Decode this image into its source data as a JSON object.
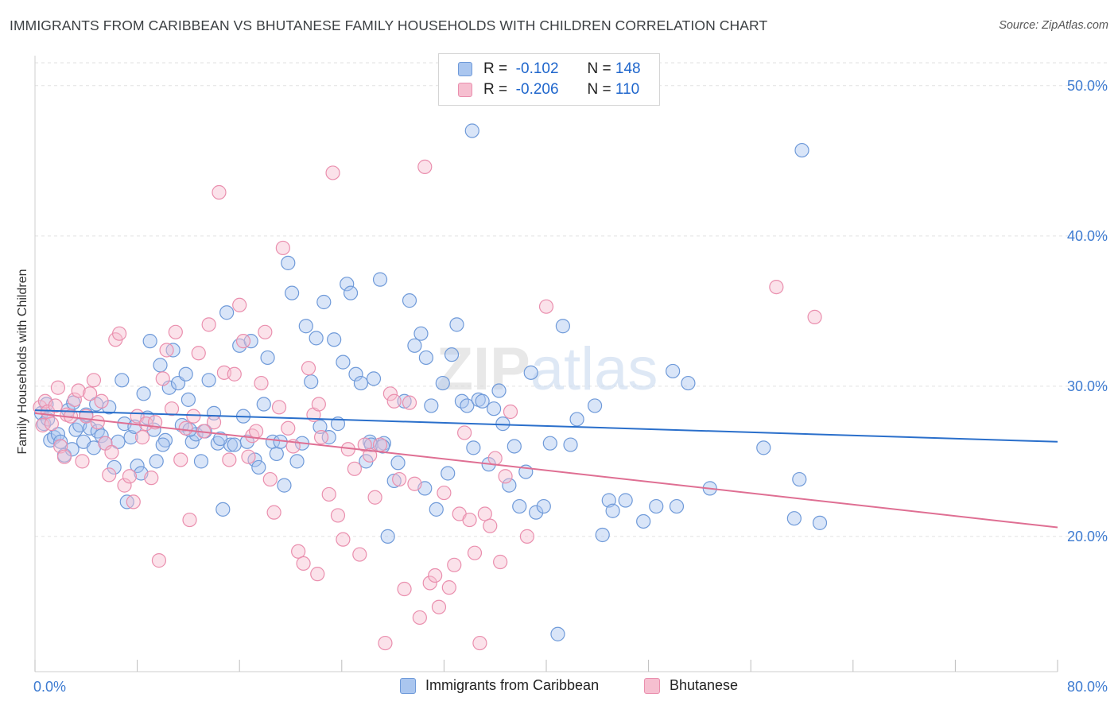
{
  "title": "IMMIGRANTS FROM CARIBBEAN VS BHUTANESE FAMILY HOUSEHOLDS WITH CHILDREN CORRELATION CHART",
  "source": "Source: ZipAtlas.com",
  "watermark": "ZIPatlas",
  "legend": {
    "r_label": "R =",
    "n_label": "N =",
    "rows": [
      {
        "r": "-0.102",
        "n": "148",
        "color": "#5b8fd6"
      },
      {
        "r": "-0.206",
        "n": "110",
        "color": "#e77fa2"
      }
    ]
  },
  "colors": {
    "blue_fill": "#aac6ef",
    "blue_stroke": "#6f9ad9",
    "blue_line": "#2a6fcb",
    "pink_fill": "#f6bfd0",
    "pink_stroke": "#ea8fae",
    "pink_line": "#df6f93",
    "tick_text": "#3d7bd1",
    "grid": "#e2e2e2"
  },
  "chart_data": {
    "type": "scatter",
    "title": "IMMIGRANTS FROM CARIBBEAN VS BHUTANESE FAMILY HOUSEHOLDS WITH CHILDREN CORRELATION CHART",
    "xlabel": "",
    "ylabel": "Family Households with Children",
    "xlim": [
      0,
      80
    ],
    "ylim": [
      11,
      52
    ],
    "x_tick_labels": [
      "0.0%",
      "80.0%"
    ],
    "y_ticks": [
      20,
      30,
      40,
      50
    ],
    "y_tick_labels": [
      "20.0%",
      "30.0%",
      "40.0%",
      "50.0%"
    ],
    "grid": true,
    "legend_position": "bottom",
    "series": [
      {
        "name": "Immigrants from Caribbean",
        "color": "#5b8fd6",
        "r": -0.102,
        "n": 148,
        "trend": {
          "x0": 0,
          "y0": 28.4,
          "x1": 80,
          "y1": 26.3
        },
        "points": [
          [
            0.5,
            28.2
          ],
          [
            0.7,
            27.5
          ],
          [
            0.9,
            28.8
          ],
          [
            1.0,
            27.8
          ],
          [
            1.2,
            26.4
          ],
          [
            1.5,
            26.6
          ],
          [
            1.8,
            26.8
          ],
          [
            2.0,
            26.3
          ],
          [
            2.3,
            25.4
          ],
          [
            2.6,
            28.4
          ],
          [
            2.9,
            25.8
          ],
          [
            3.2,
            27.1
          ],
          [
            3.5,
            27.4
          ],
          [
            3.8,
            26.3
          ],
          [
            4.0,
            28.1
          ],
          [
            4.3,
            27.2
          ],
          [
            4.6,
            25.9
          ],
          [
            4.9,
            27.0
          ],
          [
            5.2,
            26.7
          ],
          [
            5.5,
            26.2
          ],
          [
            5.8,
            28.6
          ],
          [
            6.2,
            24.6
          ],
          [
            6.5,
            26.3
          ],
          [
            7.0,
            27.5
          ],
          [
            7.2,
            22.3
          ],
          [
            7.5,
            26.6
          ],
          [
            7.8,
            27.3
          ],
          [
            8.0,
            24.7
          ],
          [
            8.3,
            24.2
          ],
          [
            8.5,
            29.5
          ],
          [
            8.8,
            27.9
          ],
          [
            9.0,
            33.0
          ],
          [
            9.3,
            27.1
          ],
          [
            9.5,
            25.0
          ],
          [
            9.8,
            31.4
          ],
          [
            10.2,
            26.4
          ],
          [
            10.5,
            29.9
          ],
          [
            10.8,
            32.4
          ],
          [
            11.2,
            30.2
          ],
          [
            11.5,
            27.4
          ],
          [
            11.8,
            30.8
          ],
          [
            12.0,
            29.1
          ],
          [
            12.3,
            26.3
          ],
          [
            12.6,
            26.8
          ],
          [
            13.0,
            25.0
          ],
          [
            13.3,
            27.0
          ],
          [
            13.6,
            30.4
          ],
          [
            14.0,
            28.2
          ],
          [
            14.3,
            26.2
          ],
          [
            14.7,
            21.8
          ],
          [
            15.0,
            34.9
          ],
          [
            15.3,
            26.1
          ],
          [
            15.6,
            26.1
          ],
          [
            16.0,
            32.7
          ],
          [
            16.3,
            28.0
          ],
          [
            16.6,
            26.3
          ],
          [
            16.9,
            33.0
          ],
          [
            17.2,
            25.1
          ],
          [
            17.5,
            24.6
          ],
          [
            17.9,
            28.8
          ],
          [
            18.2,
            31.9
          ],
          [
            18.6,
            26.3
          ],
          [
            18.9,
            25.5
          ],
          [
            19.2,
            26.3
          ],
          [
            19.5,
            23.4
          ],
          [
            19.8,
            38.2
          ],
          [
            20.1,
            36.2
          ],
          [
            20.5,
            25.0
          ],
          [
            20.9,
            26.2
          ],
          [
            21.2,
            34.0
          ],
          [
            21.6,
            30.3
          ],
          [
            22.0,
            33.2
          ],
          [
            22.3,
            27.3
          ],
          [
            22.6,
            35.6
          ],
          [
            23.0,
            26.6
          ],
          [
            23.4,
            33.1
          ],
          [
            23.7,
            27.5
          ],
          [
            24.1,
            31.6
          ],
          [
            24.4,
            36.8
          ],
          [
            24.7,
            36.2
          ],
          [
            25.1,
            30.8
          ],
          [
            25.5,
            30.2
          ],
          [
            25.9,
            25.0
          ],
          [
            26.2,
            26.3
          ],
          [
            26.5,
            30.5
          ],
          [
            27.0,
            37.1
          ],
          [
            27.3,
            26.2
          ],
          [
            27.6,
            20.0
          ],
          [
            28.1,
            23.7
          ],
          [
            28.4,
            24.9
          ],
          [
            28.9,
            29.0
          ],
          [
            29.3,
            35.7
          ],
          [
            29.7,
            32.7
          ],
          [
            30.2,
            33.5
          ],
          [
            30.6,
            31.9
          ],
          [
            31.0,
            28.7
          ],
          [
            31.4,
            21.8
          ],
          [
            31.9,
            30.2
          ],
          [
            32.3,
            24.2
          ],
          [
            32.6,
            32.1
          ],
          [
            33.0,
            34.1
          ],
          [
            33.4,
            29.0
          ],
          [
            33.8,
            28.7
          ],
          [
            34.3,
            25.9
          ],
          [
            34.7,
            29.1
          ],
          [
            35.0,
            29.0
          ],
          [
            35.5,
            24.8
          ],
          [
            35.9,
            28.5
          ],
          [
            36.3,
            29.7
          ],
          [
            36.6,
            27.5
          ],
          [
            37.1,
            23.4
          ],
          [
            37.5,
            26.0
          ],
          [
            37.9,
            22.0
          ],
          [
            38.4,
            24.3
          ],
          [
            38.8,
            30.9
          ],
          [
            39.2,
            21.6
          ],
          [
            39.8,
            22.0
          ],
          [
            40.3,
            26.2
          ],
          [
            40.9,
            13.5
          ],
          [
            41.3,
            34.0
          ],
          [
            41.9,
            26.1
          ],
          [
            42.4,
            27.8
          ],
          [
            43.8,
            28.7
          ],
          [
            44.4,
            20.1
          ],
          [
            44.9,
            22.4
          ],
          [
            45.2,
            21.7
          ],
          [
            46.2,
            22.4
          ],
          [
            47.6,
            21.0
          ],
          [
            48.6,
            22.0
          ],
          [
            49.9,
            31.0
          ],
          [
            50.2,
            22.0
          ],
          [
            51.1,
            30.2
          ],
          [
            52.8,
            23.2
          ],
          [
            34.2,
            47.0
          ],
          [
            57.0,
            25.9
          ],
          [
            59.4,
            21.2
          ],
          [
            59.8,
            23.8
          ],
          [
            61.4,
            20.9
          ],
          [
            60.0,
            45.7
          ],
          [
            26.3,
            26.1
          ],
          [
            27.2,
            26.0
          ],
          [
            3.0,
            28.9
          ],
          [
            4.8,
            28.8
          ],
          [
            6.8,
            30.4
          ],
          [
            10.0,
            26.1
          ],
          [
            12.1,
            27.1
          ],
          [
            14.5,
            26.5
          ],
          [
            30.5,
            23.2
          ]
        ]
      },
      {
        "name": "Bhutanese",
        "color": "#e77fa2",
        "r": -0.206,
        "n": 110,
        "trend": {
          "x0": 0,
          "y0": 28.2,
          "x1": 80,
          "y1": 20.6
        },
        "points": [
          [
            0.4,
            28.6
          ],
          [
            0.6,
            27.4
          ],
          [
            0.8,
            29.0
          ],
          [
            1.0,
            28.3
          ],
          [
            1.3,
            27.5
          ],
          [
            1.6,
            28.7
          ],
          [
            1.8,
            29.9
          ],
          [
            2.0,
            26.0
          ],
          [
            2.3,
            25.3
          ],
          [
            2.5,
            28.1
          ],
          [
            2.8,
            28.0
          ],
          [
            3.1,
            29.1
          ],
          [
            3.4,
            29.7
          ],
          [
            3.7,
            25.0
          ],
          [
            4.0,
            28.0
          ],
          [
            4.3,
            29.5
          ],
          [
            4.6,
            30.4
          ],
          [
            4.9,
            27.6
          ],
          [
            5.2,
            29.0
          ],
          [
            5.5,
            26.2
          ],
          [
            5.8,
            24.1
          ],
          [
            6.0,
            25.6
          ],
          [
            6.3,
            33.1
          ],
          [
            6.6,
            33.5
          ],
          [
            7.0,
            23.4
          ],
          [
            7.4,
            24.0
          ],
          [
            7.7,
            22.3
          ],
          [
            8.0,
            28.0
          ],
          [
            8.4,
            26.6
          ],
          [
            8.7,
            27.5
          ],
          [
            9.1,
            23.9
          ],
          [
            9.4,
            27.6
          ],
          [
            9.7,
            18.4
          ],
          [
            10.0,
            30.5
          ],
          [
            10.3,
            32.4
          ],
          [
            10.7,
            28.5
          ],
          [
            11.0,
            33.6
          ],
          [
            11.4,
            25.1
          ],
          [
            11.8,
            27.2
          ],
          [
            12.1,
            21.1
          ],
          [
            12.4,
            28.0
          ],
          [
            12.8,
            32.2
          ],
          [
            13.2,
            27.0
          ],
          [
            13.6,
            34.1
          ],
          [
            14.0,
            27.6
          ],
          [
            14.4,
            42.9
          ],
          [
            14.8,
            30.9
          ],
          [
            15.2,
            25.1
          ],
          [
            15.6,
            30.8
          ],
          [
            16.0,
            35.4
          ],
          [
            16.3,
            33.0
          ],
          [
            16.7,
            25.3
          ],
          [
            17.0,
            26.7
          ],
          [
            17.3,
            27.0
          ],
          [
            17.7,
            30.2
          ],
          [
            18.0,
            33.6
          ],
          [
            18.4,
            23.8
          ],
          [
            18.7,
            21.6
          ],
          [
            19.1,
            28.6
          ],
          [
            19.4,
            39.2
          ],
          [
            19.8,
            27.2
          ],
          [
            20.2,
            26.0
          ],
          [
            20.6,
            19.0
          ],
          [
            21.0,
            18.2
          ],
          [
            21.4,
            31.2
          ],
          [
            21.8,
            28.1
          ],
          [
            22.1,
            17.5
          ],
          [
            22.4,
            26.6
          ],
          [
            23.0,
            22.8
          ],
          [
            23.3,
            44.2
          ],
          [
            23.7,
            21.4
          ],
          [
            24.1,
            19.8
          ],
          [
            24.5,
            25.8
          ],
          [
            25.0,
            24.5
          ],
          [
            25.4,
            18.8
          ],
          [
            25.8,
            26.1
          ],
          [
            26.2,
            25.4
          ],
          [
            26.6,
            22.6
          ],
          [
            27.0,
            26.1
          ],
          [
            27.4,
            12.9
          ],
          [
            27.8,
            29.5
          ],
          [
            28.1,
            29.0
          ],
          [
            28.5,
            23.8
          ],
          [
            28.9,
            16.5
          ],
          [
            29.3,
            28.9
          ],
          [
            29.7,
            23.5
          ],
          [
            30.1,
            14.6
          ],
          [
            30.5,
            44.6
          ],
          [
            30.9,
            16.9
          ],
          [
            31.3,
            17.4
          ],
          [
            31.6,
            15.3
          ],
          [
            32.0,
            22.9
          ],
          [
            32.4,
            16.6
          ],
          [
            32.8,
            18.1
          ],
          [
            33.2,
            21.5
          ],
          [
            33.6,
            26.9
          ],
          [
            34.0,
            21.1
          ],
          [
            34.4,
            18.9
          ],
          [
            34.8,
            12.9
          ],
          [
            35.2,
            21.5
          ],
          [
            35.6,
            20.7
          ],
          [
            36.0,
            25.2
          ],
          [
            36.4,
            18.3
          ],
          [
            36.8,
            24.0
          ],
          [
            37.2,
            28.3
          ],
          [
            38.5,
            20.0
          ],
          [
            40.0,
            35.3
          ],
          [
            58.0,
            36.6
          ],
          [
            61.0,
            34.6
          ],
          [
            22.2,
            28.8
          ]
        ]
      }
    ]
  },
  "bottom_legend": [
    "Immigrants from Caribbean",
    "Bhutanese"
  ]
}
